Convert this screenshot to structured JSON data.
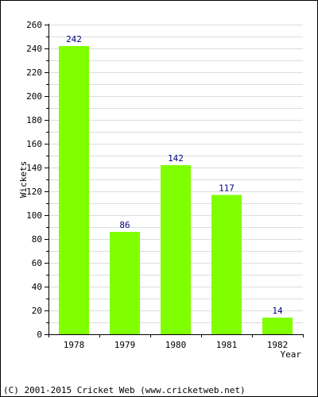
{
  "chart_data": {
    "type": "bar",
    "categories": [
      "1978",
      "1979",
      "1980",
      "1981",
      "1982"
    ],
    "values": [
      242,
      86,
      142,
      117,
      14
    ],
    "ylabel": "Wickets",
    "xlabel": "Year",
    "ylim": [
      0,
      260
    ],
    "yticks": [
      0,
      20,
      40,
      60,
      80,
      100,
      120,
      140,
      160,
      180,
      200,
      220,
      240,
      260
    ],
    "grid": true,
    "bar_color": "#80ff00",
    "label_color": "#000080"
  },
  "footer": {
    "copyright": "(C) 2001-2015 Cricket Web (www.cricketweb.net)"
  }
}
